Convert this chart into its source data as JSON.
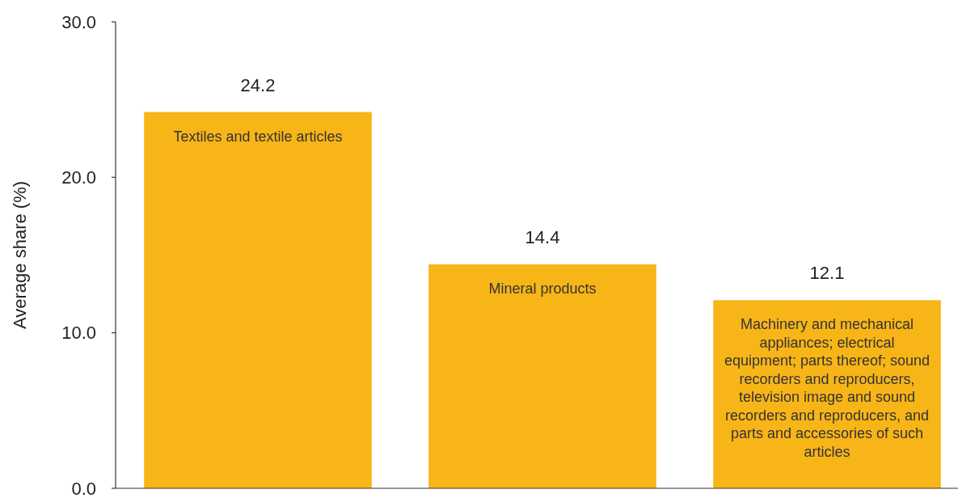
{
  "chart_data": {
    "type": "bar",
    "ylabel": "Average share (%)",
    "categories": [
      "Textiles and textile articles",
      "Mineral products",
      "Machinery and mechanical appliances; electrical equipment; parts thereof; sound recorders and reproducers, television image and sound recorders and reproducers, and parts and accessories of such articles"
    ],
    "values": [
      24.2,
      14.4,
      12.1
    ],
    "color": "#f8b518",
    "data_labels": true,
    "ylim": [
      0,
      30
    ],
    "yticks": [
      {
        "value": 0,
        "label": "0.0"
      },
      {
        "value": 10,
        "label": "10.0"
      },
      {
        "value": 20,
        "label": "20.0"
      },
      {
        "value": 30,
        "label": "30.0"
      }
    ],
    "grid": false
  }
}
